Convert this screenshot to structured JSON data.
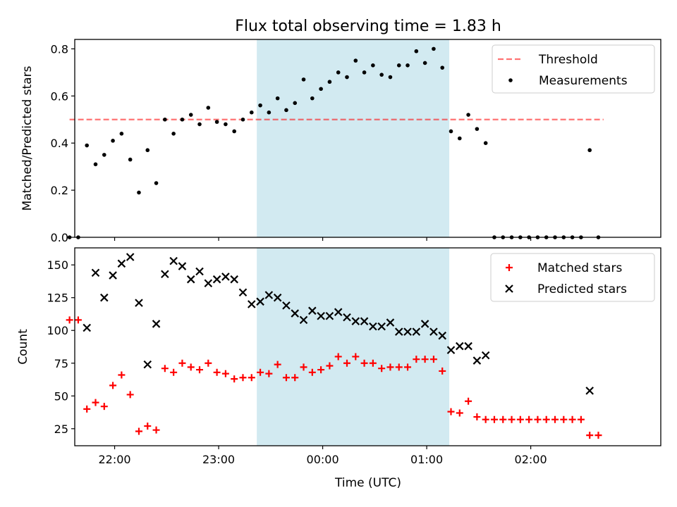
{
  "chart_data": {
    "title": "Flux total observing time = 1.83 h",
    "xlabel": "Time (UTC)",
    "x_tick_labels": [
      "22:00",
      "23:00",
      "00:00",
      "01:00",
      "02:00"
    ],
    "x_range": [
      "21:37",
      "03:15"
    ],
    "highlight_span": {
      "start": "23:22",
      "end": "01:13",
      "color": "#add8e6"
    },
    "colors": {
      "threshold": "#ff0000",
      "measurements": "#000000",
      "matched": "#ff0000",
      "predicted": "#000000",
      "highlight": "#add8e6"
    },
    "panels": [
      {
        "type": "scatter",
        "ylabel": "Matched/Predicted stars",
        "ylim": [
          0,
          0.84
        ],
        "y_ticks": [
          "0.0",
          "0.2",
          "0.4",
          "0.6",
          "0.8"
        ],
        "legend": {
          "placement": "upper right",
          "entries": [
            "Threshold",
            "Measurements"
          ]
        },
        "threshold": {
          "name": "Threshold",
          "value": 0.5,
          "x_start": "21:34",
          "x_end": "02:42"
        },
        "series": [
          {
            "name": "Measurements",
            "marker": "dot",
            "points": [
              [
                "21:34",
                0.0
              ],
              [
                "21:39",
                0.0
              ],
              [
                "21:44",
                0.39
              ],
              [
                "21:49",
                0.31
              ],
              [
                "21:54",
                0.35
              ],
              [
                "21:59",
                0.41
              ],
              [
                "22:04",
                0.44
              ],
              [
                "22:09",
                0.33
              ],
              [
                "22:14",
                0.19
              ],
              [
                "22:19",
                0.37
              ],
              [
                "22:24",
                0.23
              ],
              [
                "22:29",
                0.5
              ],
              [
                "22:34",
                0.44
              ],
              [
                "22:39",
                0.5
              ],
              [
                "22:44",
                0.52
              ],
              [
                "22:49",
                0.48
              ],
              [
                "22:54",
                0.55
              ],
              [
                "22:59",
                0.49
              ],
              [
                "23:04",
                0.48
              ],
              [
                "23:09",
                0.45
              ],
              [
                "23:14",
                0.5
              ],
              [
                "23:19",
                0.53
              ],
              [
                "23:24",
                0.56
              ],
              [
                "23:29",
                0.53
              ],
              [
                "23:34",
                0.59
              ],
              [
                "23:39",
                0.54
              ],
              [
                "23:44",
                0.57
              ],
              [
                "23:49",
                0.67
              ],
              [
                "23:54",
                0.59
              ],
              [
                "23:59",
                0.63
              ],
              [
                "00:04",
                0.66
              ],
              [
                "00:09",
                0.7
              ],
              [
                "00:14",
                0.68
              ],
              [
                "00:19",
                0.75
              ],
              [
                "00:24",
                0.7
              ],
              [
                "00:29",
                0.73
              ],
              [
                "00:34",
                0.69
              ],
              [
                "00:39",
                0.68
              ],
              [
                "00:44",
                0.73
              ],
              [
                "00:49",
                0.73
              ],
              [
                "00:54",
                0.79
              ],
              [
                "00:59",
                0.74
              ],
              [
                "01:04",
                0.8
              ],
              [
                "01:09",
                0.72
              ],
              [
                "01:14",
                0.45
              ],
              [
                "01:19",
                0.42
              ],
              [
                "01:24",
                0.52
              ],
              [
                "01:29",
                0.46
              ],
              [
                "01:34",
                0.4
              ],
              [
                "01:39",
                0.0
              ],
              [
                "01:44",
                0.0
              ],
              [
                "01:49",
                0.0
              ],
              [
                "01:54",
                0.0
              ],
              [
                "01:59",
                0.0
              ],
              [
                "02:04",
                0.0
              ],
              [
                "02:09",
                0.0
              ],
              [
                "02:14",
                0.0
              ],
              [
                "02:19",
                0.0
              ],
              [
                "02:24",
                0.0
              ],
              [
                "02:29",
                0.0
              ],
              [
                "02:34",
                0.37
              ],
              [
                "02:39",
                0.0
              ]
            ]
          }
        ]
      },
      {
        "type": "scatter",
        "ylabel": "Count",
        "ylim": [
          12,
          163
        ],
        "y_ticks": [
          "25",
          "50",
          "75",
          "100",
          "125",
          "150"
        ],
        "legend": {
          "placement": "upper right",
          "entries": [
            "Matched stars",
            "Predicted stars"
          ]
        },
        "series": [
          {
            "name": "Matched stars",
            "marker": "plus",
            "points": [
              [
                "21:34",
                108
              ],
              [
                "21:39",
                108
              ],
              [
                "21:44",
                40
              ],
              [
                "21:49",
                45
              ],
              [
                "21:54",
                42
              ],
              [
                "21:59",
                58
              ],
              [
                "22:04",
                66
              ],
              [
                "22:09",
                51
              ],
              [
                "22:14",
                23
              ],
              [
                "22:19",
                27
              ],
              [
                "22:24",
                24
              ],
              [
                "22:29",
                71
              ],
              [
                "22:34",
                68
              ],
              [
                "22:39",
                75
              ],
              [
                "22:44",
                72
              ],
              [
                "22:49",
                70
              ],
              [
                "22:54",
                75
              ],
              [
                "22:59",
                68
              ],
              [
                "23:04",
                67
              ],
              [
                "23:09",
                63
              ],
              [
                "23:14",
                64
              ],
              [
                "23:19",
                64
              ],
              [
                "23:24",
                68
              ],
              [
                "23:29",
                67
              ],
              [
                "23:34",
                74
              ],
              [
                "23:39",
                64
              ],
              [
                "23:44",
                64
              ],
              [
                "23:49",
                72
              ],
              [
                "23:54",
                68
              ],
              [
                "23:59",
                70
              ],
              [
                "00:04",
                73
              ],
              [
                "00:09",
                80
              ],
              [
                "00:14",
                75
              ],
              [
                "00:19",
                80
              ],
              [
                "00:24",
                75
              ],
              [
                "00:29",
                75
              ],
              [
                "00:34",
                71
              ],
              [
                "00:39",
                72
              ],
              [
                "00:44",
                72
              ],
              [
                "00:49",
                72
              ],
              [
                "00:54",
                78
              ],
              [
                "00:59",
                78
              ],
              [
                "01:04",
                78
              ],
              [
                "01:09",
                69
              ],
              [
                "01:14",
                38
              ],
              [
                "01:19",
                37
              ],
              [
                "01:24",
                46
              ],
              [
                "01:29",
                34
              ],
              [
                "01:34",
                32
              ],
              [
                "01:39",
                32
              ],
              [
                "01:44",
                32
              ],
              [
                "01:49",
                32
              ],
              [
                "01:54",
                32
              ],
              [
                "01:59",
                32
              ],
              [
                "02:04",
                32
              ],
              [
                "02:09",
                32
              ],
              [
                "02:14",
                32
              ],
              [
                "02:19",
                32
              ],
              [
                "02:24",
                32
              ],
              [
                "02:29",
                32
              ],
              [
                "02:34",
                20
              ],
              [
                "02:39",
                20
              ]
            ]
          },
          {
            "name": "Predicted stars",
            "marker": "x",
            "points": [
              [
                "21:44",
                102
              ],
              [
                "21:49",
                144
              ],
              [
                "21:54",
                125
              ],
              [
                "21:59",
                142
              ],
              [
                "22:04",
                151
              ],
              [
                "22:09",
                156
              ],
              [
                "22:14",
                121
              ],
              [
                "22:19",
                74
              ],
              [
                "22:24",
                105
              ],
              [
                "22:29",
                143
              ],
              [
                "22:34",
                153
              ],
              [
                "22:39",
                149
              ],
              [
                "22:44",
                139
              ],
              [
                "22:49",
                145
              ],
              [
                "22:54",
                136
              ],
              [
                "22:59",
                139
              ],
              [
                "23:04",
                141
              ],
              [
                "23:09",
                139
              ],
              [
                "23:14",
                129
              ],
              [
                "23:19",
                120
              ],
              [
                "23:24",
                122
              ],
              [
                "23:29",
                127
              ],
              [
                "23:34",
                125
              ],
              [
                "23:39",
                119
              ],
              [
                "23:44",
                113
              ],
              [
                "23:49",
                108
              ],
              [
                "23:54",
                115
              ],
              [
                "23:59",
                111
              ],
              [
                "00:04",
                111
              ],
              [
                "00:09",
                114
              ],
              [
                "00:14",
                110
              ],
              [
                "00:19",
                107
              ],
              [
                "00:24",
                107
              ],
              [
                "00:29",
                103
              ],
              [
                "00:34",
                103
              ],
              [
                "00:39",
                106
              ],
              [
                "00:44",
                99
              ],
              [
                "00:49",
                99
              ],
              [
                "00:54",
                99
              ],
              [
                "00:59",
                105
              ],
              [
                "01:04",
                99
              ],
              [
                "01:09",
                96
              ],
              [
                "01:14",
                85
              ],
              [
                "01:19",
                88
              ],
              [
                "01:24",
                88
              ],
              [
                "01:29",
                77
              ],
              [
                "01:34",
                81
              ],
              [
                "02:34",
                54
              ]
            ]
          }
        ]
      }
    ]
  }
}
